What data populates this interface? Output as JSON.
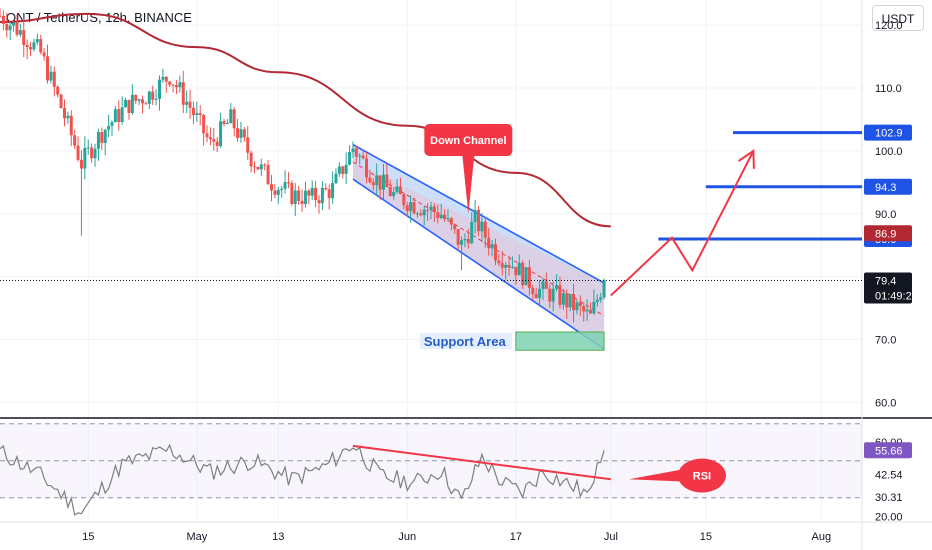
{
  "header": {
    "symbol_title": "QNT / TetherUS, 12h, BINANCE",
    "currency_button": "USDT"
  },
  "colors": {
    "bull": "#26a69a",
    "bear": "#ef5350",
    "ma": "#b22833",
    "channel_fill": "#8fb6f5",
    "channel_line": "#2962ff",
    "level_line": "#1e53e5",
    "projection": "#f23645",
    "support_fill": "#7fd1b2",
    "rsi_line": "#7e7e7e",
    "current_price": "#131722",
    "separator": "#131722"
  },
  "chart_data": [
    {
      "type": "candlestick",
      "title": "QNT / TetherUS, 12h, BINANCE",
      "x_axis": {
        "type": "time",
        "range": [
          "2023-04-02",
          "2023-08-07"
        ],
        "tick_labels": [
          "15",
          "May",
          "13",
          "Jun",
          "17",
          "Jul",
          "15",
          "Aug"
        ],
        "tick_dates": [
          "2023-04-15",
          "2023-05-01",
          "2023-05-13",
          "2023-06-01",
          "2023-06-17",
          "2023-07-01",
          "2023-07-15",
          "2023-08-01"
        ]
      },
      "y_axis": {
        "range": [
          58,
          124
        ],
        "tick_labels": [
          "120.0",
          "110.0",
          "100.0",
          "90.0",
          "80.0",
          "70.0",
          "60.0"
        ],
        "ticks": [
          120,
          110,
          100,
          90,
          80,
          70,
          60
        ],
        "position": "right"
      },
      "grid": true,
      "price_path": [
        {
          "date": "2023-04-02",
          "price": 121.5
        },
        {
          "date": "2023-04-05",
          "price": 119
        },
        {
          "date": "2023-04-08",
          "price": 115.5
        },
        {
          "date": "2023-04-11",
          "price": 107
        },
        {
          "date": "2023-04-14",
          "price": 98
        },
        {
          "date": "2023-04-17",
          "price": 103
        },
        {
          "date": "2023-04-21",
          "price": 107.5
        },
        {
          "date": "2023-04-24",
          "price": 109
        },
        {
          "date": "2023-04-27",
          "price": 112
        },
        {
          "date": "2023-04-30",
          "price": 107
        },
        {
          "date": "2023-05-03",
          "price": 101
        },
        {
          "date": "2023-05-06",
          "price": 105
        },
        {
          "date": "2023-05-09",
          "price": 99
        },
        {
          "date": "2023-05-12",
          "price": 95
        },
        {
          "date": "2023-05-15",
          "price": 93
        },
        {
          "date": "2023-05-18",
          "price": 92.5
        },
        {
          "date": "2023-05-21",
          "price": 94
        },
        {
          "date": "2023-05-24",
          "price": 100.5
        },
        {
          "date": "2023-05-27",
          "price": 96
        },
        {
          "date": "2023-05-30",
          "price": 93
        },
        {
          "date": "2023-06-02",
          "price": 91.5
        },
        {
          "date": "2023-06-06",
          "price": 90
        },
        {
          "date": "2023-06-09",
          "price": 85
        },
        {
          "date": "2023-06-11",
          "price": 89
        },
        {
          "date": "2023-06-14",
          "price": 84
        },
        {
          "date": "2023-06-17",
          "price": 81.5
        },
        {
          "date": "2023-06-20",
          "price": 78
        },
        {
          "date": "2023-06-23",
          "price": 77
        },
        {
          "date": "2023-06-26",
          "price": 75
        },
        {
          "date": "2023-06-28",
          "price": 73.5
        },
        {
          "date": "2023-06-30",
          "price": 79.4
        }
      ],
      "price_extremes": [
        {
          "date": "2023-04-14",
          "price": 86.5,
          "note": "wick low"
        },
        {
          "date": "2023-06-09",
          "price": 81,
          "note": "wick low"
        },
        {
          "date": "2023-05-24",
          "price": 101.5,
          "note": "wick high"
        }
      ],
      "moving_average": [
        {
          "date": "2023-04-02",
          "value": 120.5
        },
        {
          "date": "2023-04-15",
          "value": 121.8
        },
        {
          "date": "2023-05-01",
          "value": 116.5
        },
        {
          "date": "2023-05-13",
          "value": 112.5
        },
        {
          "date": "2023-06-01",
          "value": 104
        },
        {
          "date": "2023-06-17",
          "value": 96.5
        },
        {
          "date": "2023-07-01",
          "value": 88
        }
      ],
      "channel": {
        "upper": [
          {
            "date": "2023-05-24",
            "price": 101
          },
          {
            "date": "2023-06-30",
            "price": 79
          }
        ],
        "lower": [
          {
            "date": "2023-05-24",
            "price": 95.5
          },
          {
            "date": "2023-06-30",
            "price": 68.5
          }
        ]
      },
      "down_channel_callout": {
        "label": "Down Channel",
        "date": "2023-06-10",
        "price": 90
      },
      "support_area": {
        "label": "Support Area",
        "date_from": "2023-06-17",
        "date_to": "2023-06-30",
        "price_low": 68.3,
        "price_high": 71.2
      },
      "projection": [
        {
          "date": "2023-07-01",
          "price": 77
        },
        {
          "date": "2023-07-10",
          "price": 86.2
        },
        {
          "date": "2023-07-13",
          "price": 81
        },
        {
          "date": "2023-07-22",
          "price": 100
        }
      ],
      "horizontal_levels": [
        {
          "value": 102.9,
          "label": "102.9",
          "date_from": "2023-07-19",
          "badge_color": "#1e53e5"
        },
        {
          "value": 94.3,
          "label": "94.3",
          "date_from": "2023-07-15",
          "badge_color": "#1e53e5"
        },
        {
          "value": 86.0,
          "label": "86.0",
          "date_from": "2023-07-08",
          "badge_color": "#1e53e5"
        }
      ],
      "ma_value_badge": {
        "value": 86.9,
        "label": "86.9",
        "color": "#b22833"
      },
      "current_price": {
        "value": 79.4,
        "label": "79.4",
        "countdown": "01:49:28"
      }
    },
    {
      "type": "line",
      "name": "RSI",
      "y_axis": {
        "range": [
          18,
          72
        ],
        "tick_labels": [
          "60.00",
          "20.00"
        ],
        "ticks": [
          60,
          20
        ]
      },
      "bands": [
        70,
        50,
        30
      ],
      "rsi_path": [
        {
          "date": "2023-04-02",
          "value": 55
        },
        {
          "date": "2023-04-08",
          "value": 42
        },
        {
          "date": "2023-04-14",
          "value": 22
        },
        {
          "date": "2023-04-20",
          "value": 48
        },
        {
          "date": "2023-04-27",
          "value": 56
        },
        {
          "date": "2023-05-03",
          "value": 44
        },
        {
          "date": "2023-05-09",
          "value": 50
        },
        {
          "date": "2023-05-15",
          "value": 40
        },
        {
          "date": "2023-05-20",
          "value": 47
        },
        {
          "date": "2023-05-24",
          "value": 59
        },
        {
          "date": "2023-05-28",
          "value": 42
        },
        {
          "date": "2023-06-02",
          "value": 38
        },
        {
          "date": "2023-06-06",
          "value": 45
        },
        {
          "date": "2023-06-09",
          "value": 28
        },
        {
          "date": "2023-06-12",
          "value": 52
        },
        {
          "date": "2023-06-15",
          "value": 38
        },
        {
          "date": "2023-06-18",
          "value": 33
        },
        {
          "date": "2023-06-21",
          "value": 44
        },
        {
          "date": "2023-06-25",
          "value": 37
        },
        {
          "date": "2023-06-28",
          "value": 31
        },
        {
          "date": "2023-06-29",
          "value": 52
        },
        {
          "date": "2023-06-30",
          "value": 55.66
        }
      ],
      "trendline": [
        {
          "date": "2023-05-24",
          "value": 58
        },
        {
          "date": "2023-07-01",
          "value": 40
        }
      ],
      "callout": {
        "label": "RSI",
        "date": "2023-07-10",
        "value": 42
      },
      "value_badges": [
        {
          "value": 55.66,
          "label": "55.66",
          "color": "#7e57c2"
        },
        {
          "value": 42.54,
          "label": "42.54"
        },
        {
          "value": 30.31,
          "label": "30.31"
        }
      ]
    }
  ]
}
